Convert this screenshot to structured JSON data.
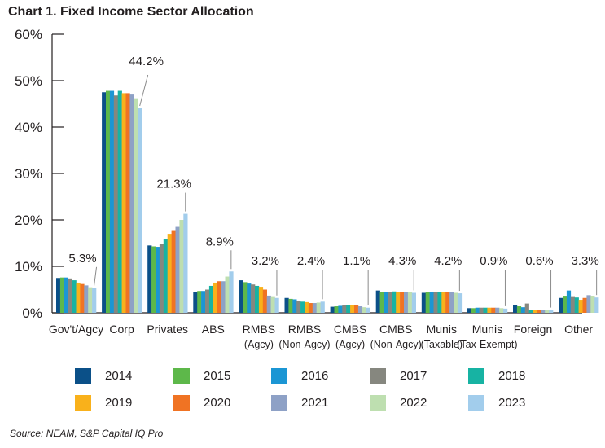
{
  "title": "Chart 1. Fixed Income Sector Allocation",
  "source": "Source: NEAM, S&P Capital IQ Pro",
  "chart_data": {
    "type": "bar",
    "title": "Chart 1. Fixed Income Sector Allocation",
    "xlabel": "",
    "ylabel": "",
    "ylim": [
      0,
      60
    ],
    "yticks": [
      "0%",
      "10%",
      "20%",
      "30%",
      "40%",
      "50%",
      "60%"
    ],
    "grid": false,
    "legend_position": "bottom",
    "categories": [
      [
        "Gov't/Agcy"
      ],
      [
        "Corp"
      ],
      [
        "Privates"
      ],
      [
        "ABS"
      ],
      [
        "RMBS",
        "(Agcy)"
      ],
      [
        "RMBS",
        "(Non-Agcy)"
      ],
      [
        "CMBS",
        "(Agcy)"
      ],
      [
        "CMBS",
        "(Non-Agcy)"
      ],
      [
        "Munis",
        "(Taxable)"
      ],
      [
        "Munis",
        "(Tax-Exempt)"
      ],
      [
        "Foreign"
      ],
      [
        "Other"
      ]
    ],
    "annotations": [
      "5.3%",
      "44.2%",
      "21.3%",
      "8.9%",
      "3.2%",
      "2.4%",
      "1.1%",
      "4.3%",
      "4.2%",
      "0.9%",
      "0.6%",
      "3.3%"
    ],
    "series": [
      {
        "name": "2014",
        "color": "#0b5088",
        "values": [
          7.5,
          47.5,
          14.5,
          4.5,
          7.0,
          3.2,
          1.3,
          4.8,
          4.3,
          1.0,
          1.6,
          3.2
        ]
      },
      {
        "name": "2015",
        "color": "#5db84a",
        "values": [
          7.6,
          47.8,
          14.3,
          4.7,
          6.6,
          3.0,
          1.4,
          4.5,
          4.4,
          1.0,
          1.4,
          3.5
        ]
      },
      {
        "name": "2016",
        "color": "#1b96d4",
        "values": [
          7.6,
          47.8,
          14.2,
          4.7,
          6.3,
          2.9,
          1.5,
          4.4,
          4.4,
          1.1,
          1.2,
          4.8
        ]
      },
      {
        "name": "2017",
        "color": "#86877f",
        "values": [
          7.4,
          46.8,
          14.8,
          5.0,
          6.1,
          2.6,
          1.6,
          4.5,
          4.4,
          1.1,
          2.0,
          3.4
        ]
      },
      {
        "name": "2018",
        "color": "#17b3a3",
        "values": [
          7.0,
          47.8,
          15.8,
          5.8,
          5.8,
          2.4,
          1.7,
          4.6,
          4.4,
          1.1,
          0.7,
          3.3
        ]
      },
      {
        "name": "2019",
        "color": "#f9b11b",
        "values": [
          6.5,
          47.3,
          17.0,
          6.5,
          5.6,
          2.3,
          1.6,
          4.5,
          4.4,
          1.1,
          0.6,
          2.8
        ]
      },
      {
        "name": "2020",
        "color": "#f07323",
        "values": [
          6.2,
          47.3,
          17.8,
          6.8,
          5.0,
          2.1,
          1.6,
          4.5,
          4.4,
          1.1,
          0.6,
          3.2
        ]
      },
      {
        "name": "2021",
        "color": "#8ea1c6",
        "values": [
          5.9,
          47.0,
          18.5,
          6.8,
          3.7,
          2.1,
          1.4,
          4.5,
          4.5,
          1.1,
          0.6,
          3.8
        ]
      },
      {
        "name": "2022",
        "color": "#bedfb0",
        "values": [
          5.5,
          46.2,
          20.0,
          7.8,
          3.4,
          2.2,
          1.2,
          4.5,
          4.3,
          1.0,
          0.6,
          3.5
        ]
      },
      {
        "name": "2023",
        "color": "#a2cdec",
        "values": [
          5.3,
          44.2,
          21.3,
          8.9,
          3.2,
          2.4,
          1.1,
          4.3,
          4.2,
          0.9,
          0.6,
          3.3
        ]
      }
    ]
  }
}
